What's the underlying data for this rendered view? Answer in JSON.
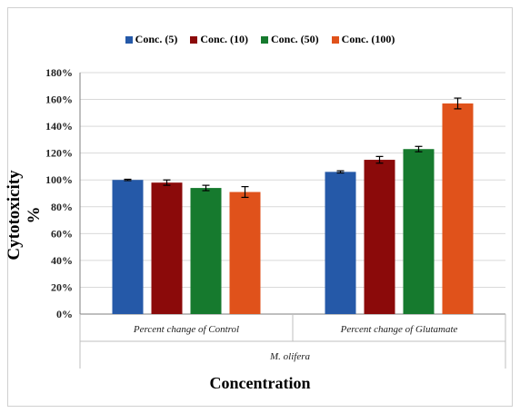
{
  "chart_data": {
    "type": "bar",
    "categories": [
      "Percent change of Control",
      "Percent change of Glutamate"
    ],
    "group_label": "M. olifera",
    "xlabel": "Concentration",
    "ylabel": "Cytotoxicity %",
    "ylim": [
      0,
      180
    ],
    "yticks": [
      "0%",
      "20%",
      "40%",
      "60%",
      "80%",
      "100%",
      "120%",
      "140%",
      "160%",
      "180%"
    ],
    "legend_position": "top",
    "series": [
      {
        "name": "Conc. (5)",
        "color": "#2559a8",
        "values": [
          100,
          106
        ],
        "errors": [
          0.5,
          0.8
        ]
      },
      {
        "name": "Conc. (10)",
        "color": "#8b0a0a",
        "values": [
          98,
          115
        ],
        "errors": [
          2,
          2.5
        ]
      },
      {
        "name": "Conc. (50)",
        "color": "#167a2e",
        "values": [
          94,
          123
        ],
        "errors": [
          2,
          2
        ]
      },
      {
        "name": "Conc. (100)",
        "color": "#e0521b",
        "values": [
          91,
          157
        ],
        "errors": [
          4,
          4
        ]
      }
    ]
  }
}
